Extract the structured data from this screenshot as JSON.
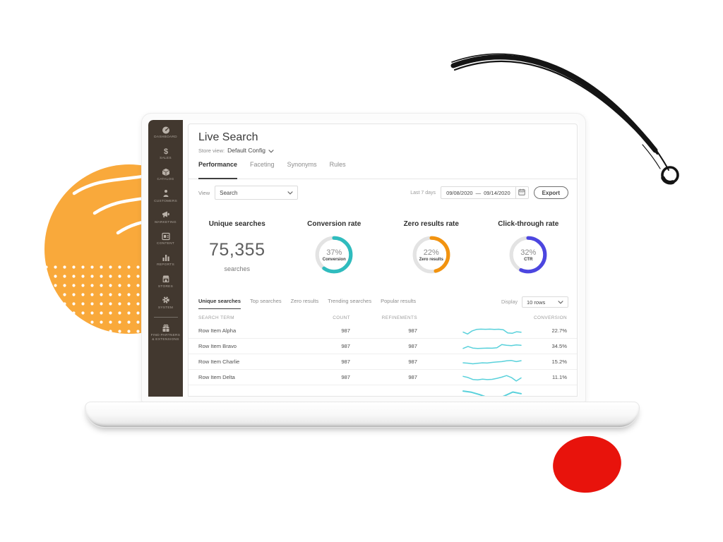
{
  "sidebar": {
    "items": [
      {
        "label": "DASHBOARD",
        "icon": "dashboard-icon"
      },
      {
        "label": "SALES",
        "icon": "sales-icon"
      },
      {
        "label": "CATALOG",
        "icon": "catalog-icon"
      },
      {
        "label": "CUSTOMERS",
        "icon": "customers-icon"
      },
      {
        "label": "MARKETING",
        "icon": "marketing-icon"
      },
      {
        "label": "CONTENT",
        "icon": "content-icon"
      },
      {
        "label": "REPORTS",
        "icon": "reports-icon"
      },
      {
        "label": "STORES",
        "icon": "stores-icon"
      },
      {
        "label": "SYSTEM",
        "icon": "system-icon"
      },
      {
        "label": "FIND PARTNERS & EXTENSIONS",
        "icon": "partners-icon",
        "divider_before": true
      }
    ]
  },
  "header": {
    "title": "Live Search",
    "store_view_label": "Store view:",
    "store_view_value": "Default Config",
    "tabs": [
      {
        "label": "Performance",
        "active": true
      },
      {
        "label": "Faceting",
        "active": false
      },
      {
        "label": "Synonyms",
        "active": false
      },
      {
        "label": "Rules",
        "active": false
      }
    ]
  },
  "filters": {
    "view_label": "View",
    "view_value": "Search",
    "range_label": "Last 7 days",
    "date_start": "09/08/2020",
    "date_separator": "—",
    "date_end": "09/14/2020",
    "export_label": "Export"
  },
  "metrics": {
    "unique": {
      "title": "Unique searches",
      "value": "75,355",
      "unit": "searches"
    },
    "donuts": [
      {
        "title": "Conversion rate",
        "percent": "37%",
        "caption": "Conversion",
        "color": "#2FBCBE",
        "arc_deg": 216
      },
      {
        "title": "Zero results rate",
        "percent": "22%",
        "caption": "Zero results",
        "color": "#F2930F",
        "arc_deg": 165
      },
      {
        "title": "Click-through rate",
        "percent": "32%",
        "caption": "CTR",
        "color": "#4C46E0",
        "arc_deg": 205
      }
    ]
  },
  "results": {
    "tabs": [
      {
        "label": "Unique searches",
        "active": true
      },
      {
        "label": "Top searches",
        "active": false
      },
      {
        "label": "Zero results",
        "active": false
      },
      {
        "label": "Trending searches",
        "active": false
      },
      {
        "label": "Popular results",
        "active": false
      }
    ],
    "display_label": "Display",
    "display_value": "10 rows",
    "columns": [
      "SEARCH TERM",
      "COUNT",
      "REFINEMENTS",
      "",
      "CONVERSION"
    ],
    "spark_color": "#59D1DB",
    "rows": [
      {
        "term": "Row Item Alpha",
        "count": "987",
        "refinements": "987",
        "conversion": "22.7%",
        "spark": [
          40,
          15,
          55,
          75,
          78,
          76,
          78,
          75,
          77,
          70,
          30,
          25,
          45,
          38
        ],
        "partial": false
      },
      {
        "term": "Row Item Bravo",
        "count": "987",
        "refinements": "987",
        "conversion": "34.5%",
        "spark": [
          30,
          55,
          35,
          30,
          32,
          35,
          33,
          38,
          80,
          70,
          65,
          75,
          70
        ],
        "partial": false
      },
      {
        "term": "Row Item Charlie",
        "count": "987",
        "refinements": "987",
        "conversion": "15.2%",
        "spark": [
          45,
          40,
          32,
          38,
          45,
          42,
          50,
          55,
          60,
          70,
          75,
          60,
          72
        ],
        "partial": false
      },
      {
        "term": "Row Item Delta",
        "count": "987",
        "refinements": "987",
        "conversion": "11.1%",
        "spark": [
          70,
          55,
          30,
          25,
          35,
          28,
          32,
          45,
          60,
          80,
          55,
          10,
          50
        ],
        "partial": false
      },
      {
        "term": "",
        "count": "",
        "refinements": "",
        "conversion": "",
        "spark": [
          70,
          60,
          40,
          15,
          0,
          30,
          62,
          48
        ],
        "partial": true
      }
    ]
  }
}
